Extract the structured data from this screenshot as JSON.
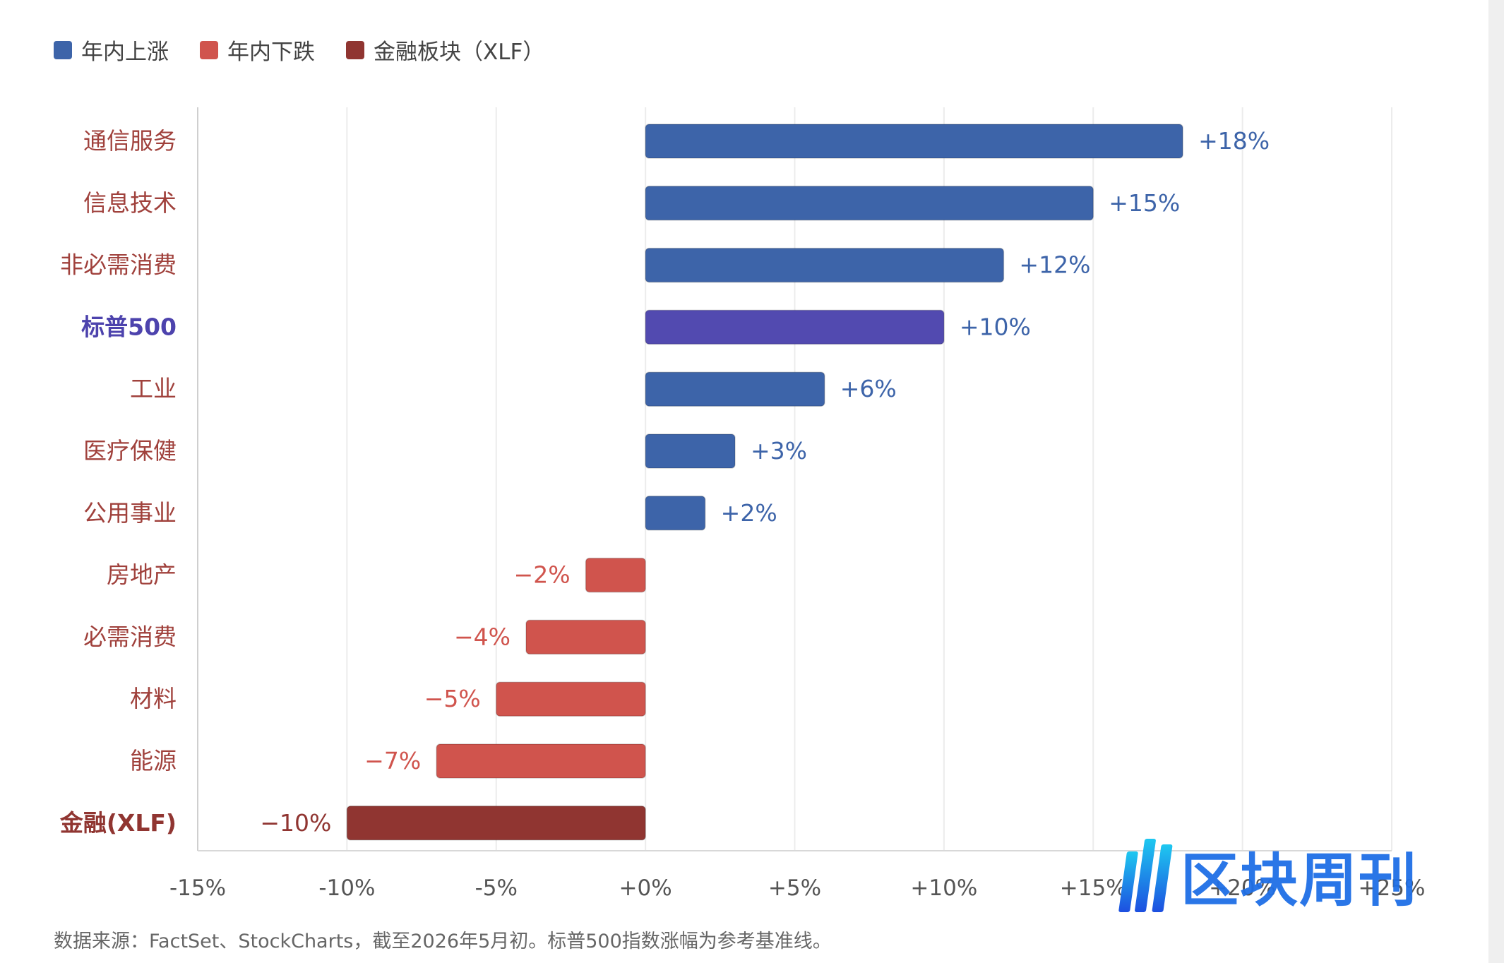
{
  "legend": {
    "items": [
      {
        "label": "年内上涨",
        "color": "#3d64a9"
      },
      {
        "label": "年内下跌",
        "color": "#d0544d"
      },
      {
        "label": "金融板块（XLF）",
        "color": "#903531"
      }
    ]
  },
  "source_note": "数据来源：FactSet、StockCharts，截至2026年5月初。标普500指数涨幅为参考基准线。",
  "watermark": {
    "text": "区块周刊"
  },
  "chart_data": {
    "type": "bar",
    "orientation": "horizontal",
    "categories": [
      "通信服务",
      "信息技术",
      "非必需消费",
      "标普500",
      "工业",
      "医疗保健",
      "公用事业",
      "房地产",
      "必需消费",
      "材料",
      "能源",
      "金融(XLF)"
    ],
    "values": [
      18,
      15,
      12,
      10,
      6,
      3,
      2,
      -2,
      -4,
      -5,
      -7,
      -10
    ],
    "value_labels": [
      "+18%",
      "+15%",
      "+12%",
      "+10%",
      "+6%",
      "+3%",
      "+2%",
      "−2%",
      "−4%",
      "−5%",
      "−7%",
      "−10%"
    ],
    "series_type": [
      "up",
      "up",
      "up",
      "benchmark",
      "up",
      "up",
      "up",
      "down",
      "down",
      "down",
      "down",
      "financial"
    ],
    "colors": {
      "up": "#3d64a9",
      "down": "#d0544d",
      "financial": "#903531",
      "benchmark": "#524ab0"
    },
    "category_label_colors": {
      "default": "#a0413c",
      "benchmark": "#4d43ad",
      "financial": "#903531"
    },
    "xlim": [
      -15,
      25
    ],
    "xticks": [
      -15,
      -10,
      -5,
      0,
      5,
      10,
      15,
      20,
      25
    ],
    "xtick_labels": [
      "-15%",
      "-10%",
      "-5%",
      "+0%",
      "+5%",
      "+10%",
      "+15%",
      "+20%",
      "+25%"
    ],
    "grid": true,
    "legend_position": "top-left"
  }
}
